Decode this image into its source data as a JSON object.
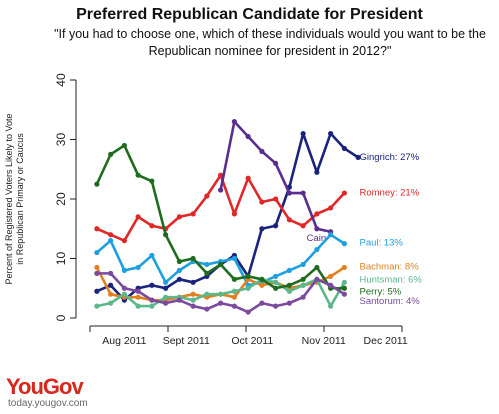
{
  "brand": {
    "name": "YouGov",
    "url": "today.yougov.com"
  },
  "chart_data": {
    "type": "line",
    "title": "Preferred Republican Candidate for President",
    "subtitle": "\"If you had to choose one, which of these individuals would you want to be the Republican nominee for president in 2012?\"",
    "ylabel": "Percent of Registered Voters Likely to Vote in Republican Primary or Caucus",
    "xlabel": "",
    "ylim": [
      0,
      40
    ],
    "yticks": [
      0,
      10,
      20,
      30,
      40
    ],
    "xlim": [
      -0.5,
      23.5
    ],
    "xticks": [
      {
        "pos": 2,
        "label": "Aug 2011"
      },
      {
        "pos": 6.5,
        "label": "Sept 2011"
      },
      {
        "pos": 11.3,
        "label": "Oct 2011"
      },
      {
        "pos": 16.5,
        "label": "Nov 2011"
      },
      {
        "pos": 21,
        "label": "Dec 2011"
      }
    ],
    "grid": false,
    "series": [
      {
        "name": "Gingrich",
        "label": "Gingrich: 27%",
        "color": "#1a237e",
        "values": [
          4.5,
          5.5,
          3,
          5,
          5.5,
          5,
          6.5,
          6,
          7,
          9,
          10.5,
          7,
          15,
          15.5,
          22,
          31,
          24.5,
          31,
          28.5,
          27
        ]
      },
      {
        "name": "Romney",
        "label": "Romney: 21%",
        "color": "#e02828",
        "values": [
          15,
          14,
          13,
          17,
          15.5,
          15,
          17,
          17.5,
          20.5,
          24,
          17.5,
          23.5,
          19.5,
          20,
          16.5,
          15.5,
          17.5,
          18.5,
          21
        ]
      },
      {
        "name": "Cain",
        "label": "Cain",
        "color": "#5b2d8e",
        "values": [
          null,
          null,
          null,
          null,
          null,
          null,
          null,
          null,
          null,
          21.5,
          33,
          30.5,
          28,
          26,
          21,
          21,
          15,
          14.5
        ]
      },
      {
        "name": "Paul",
        "label": "Paul: 13%",
        "color": "#1ea0e0",
        "values": [
          11,
          13,
          8,
          8.5,
          10.5,
          6,
          8,
          9.5,
          9,
          9.5,
          10,
          5.5,
          6,
          7,
          8,
          9,
          11.5,
          14,
          12.5
        ]
      },
      {
        "name": "Bachman",
        "label": "Bachman: 8%",
        "color": "#e08020",
        "values": [
          8.5,
          4,
          3.5,
          3.5,
          3,
          3,
          3.5,
          4,
          3.5,
          4,
          3.5,
          6.5,
          5.5,
          6,
          5,
          5.5,
          6,
          7,
          8.5
        ]
      },
      {
        "name": "Huntsman",
        "label": "Huntsman: 6%",
        "color": "#5cb88a",
        "values": [
          2,
          2.5,
          4,
          2,
          2,
          3.5,
          3.5,
          3,
          4,
          4,
          4.5,
          5,
          6.5,
          6,
          4.5,
          5.5,
          6.5,
          2,
          6
        ]
      },
      {
        "name": "Perry",
        "label": "Perry: 5%",
        "color": "#1f6b1f",
        "values": [
          22.5,
          27.5,
          29,
          24,
          23,
          14,
          9.5,
          10,
          7.5,
          9,
          6.5,
          7,
          6.5,
          5,
          5.5,
          6.5,
          8.5,
          5,
          5
        ]
      },
      {
        "name": "Santorum",
        "label": "Santorum: 4%",
        "color": "#7b4a9e",
        "values": [
          7.5,
          7.5,
          5,
          4.5,
          3,
          2.5,
          3,
          2,
          1.5,
          2.5,
          2,
          1,
          2.5,
          2,
          2.5,
          3.5,
          6.5,
          5.5,
          4
        ]
      }
    ]
  }
}
